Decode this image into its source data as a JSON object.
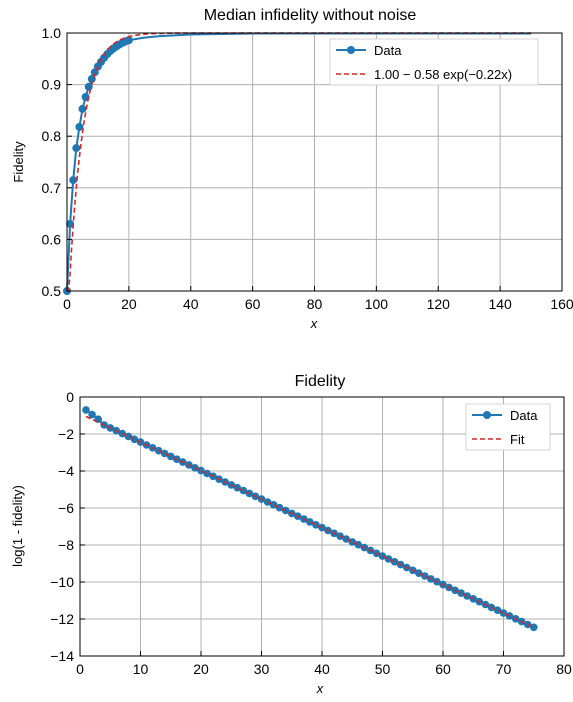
{
  "colors": {
    "data": "#1f77b4",
    "fit": "#d62728",
    "grid": "#b0b0b0",
    "axis": "#000000",
    "background": "#ffffff"
  },
  "chart_data": [
    {
      "type": "line",
      "title": "Median infidelity without noise",
      "xlabel": "x",
      "ylabel": "Fidelity",
      "xlim": [
        0,
        160
      ],
      "ylim": [
        0.5,
        1.0
      ],
      "xticks": [
        "0",
        "20",
        "40",
        "60",
        "80",
        "100",
        "120",
        "140",
        "160"
      ],
      "yticks": [
        "0.5",
        "0.6",
        "0.7",
        "0.8",
        "0.9",
        "1.0"
      ],
      "grid": true,
      "legend_position": "top-right",
      "series": [
        {
          "name": "Data",
          "style": "line-markers",
          "marker_x": [
            0,
            1,
            2,
            3,
            4,
            5,
            6,
            7,
            8,
            9,
            10,
            11,
            12,
            13,
            14,
            15,
            16,
            17,
            18,
            19,
            20
          ],
          "marker_y": [
            0.5,
            0.63,
            0.715,
            0.777,
            0.818,
            0.853,
            0.876,
            0.896,
            0.911,
            0.924,
            0.935,
            0.944,
            0.952,
            0.959,
            0.965,
            0.97,
            0.974,
            0.978,
            0.981,
            0.984,
            0.986
          ],
          "line_x": [
            20,
            25,
            30,
            40,
            50,
            60,
            80,
            100,
            120,
            140,
            150
          ],
          "line_y": [
            0.986,
            0.991,
            0.994,
            0.997,
            0.998,
            0.999,
            0.999,
            0.999,
            0.999,
            0.999,
            0.999
          ]
        },
        {
          "name": "1.00 − 0.58 exp(−0.22x)",
          "style": "dashed",
          "formula": {
            "a": 1.0,
            "b": 0.58,
            "k": 0.22
          },
          "x_range": [
            0,
            150
          ]
        }
      ]
    },
    {
      "type": "line",
      "title": "Fidelity",
      "xlabel": "x",
      "ylabel": "log(1 - fidelity)",
      "xlim": [
        0,
        80
      ],
      "ylim": [
        -14,
        0
      ],
      "xticks": [
        "0",
        "10",
        "20",
        "30",
        "40",
        "50",
        "60",
        "70",
        "80"
      ],
      "yticks": [
        "0",
        "−2",
        "−4",
        "−6",
        "−8",
        "−10",
        "−12",
        "−14"
      ],
      "grid": true,
      "legend_position": "top-right",
      "series": [
        {
          "name": "Data",
          "style": "line-markers",
          "x_start": 1,
          "x_end": 75,
          "first_y": [
            -0.7,
            -0.95,
            -1.2
          ],
          "linear": {
            "slope": -0.154,
            "intercept": -0.9
          }
        },
        {
          "name": "Fit",
          "style": "dashed",
          "x_range": [
            1,
            75
          ],
          "linear": {
            "slope": -0.154,
            "intercept": -0.9
          }
        }
      ]
    }
  ]
}
